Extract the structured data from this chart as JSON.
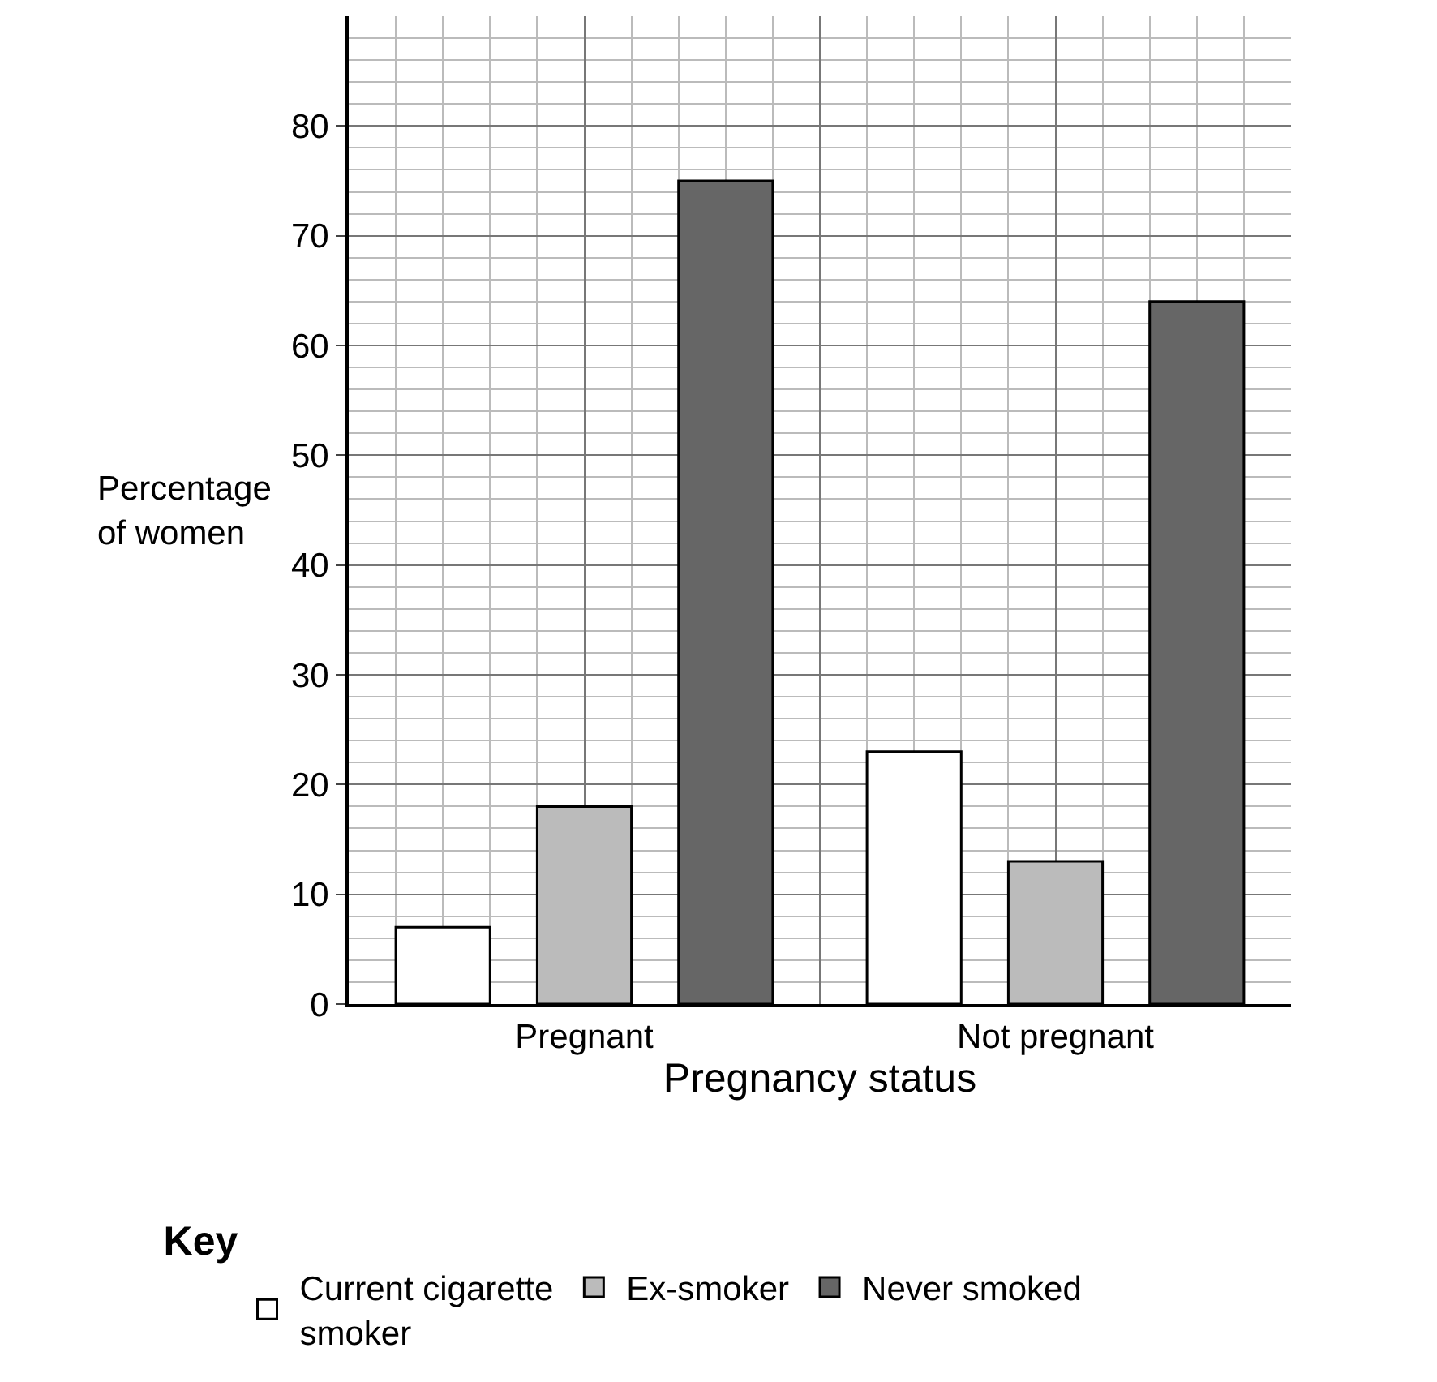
{
  "chart_data": {
    "type": "bar",
    "xlabel": "Pregnancy status",
    "ylabel": "Percentage of women",
    "legend_title": "Key",
    "categories": [
      "Pregnant",
      "Not pregnant"
    ],
    "series": [
      {
        "name": "Current cigarette smoker",
        "color": "#ffffff",
        "values": [
          7,
          23
        ]
      },
      {
        "name": "Ex-smoker",
        "color": "#bbbbbb",
        "values": [
          18,
          13
        ]
      },
      {
        "name": "Never smoked",
        "color": "#666666",
        "values": [
          75,
          64
        ]
      }
    ],
    "ylim": [
      0,
      90
    ],
    "yticks": [
      0,
      10,
      20,
      30,
      40,
      50,
      60,
      70,
      80
    ],
    "grid": true,
    "legend": "bottom"
  }
}
